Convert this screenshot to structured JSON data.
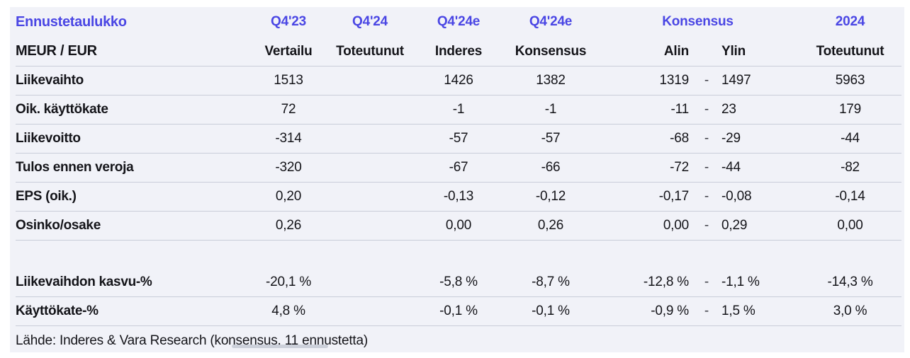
{
  "style": {
    "accent_color": "#4a46e4",
    "table_bg": "#f1f2f8",
    "divider_color": "#c9cdd9",
    "text_color": "#141419"
  },
  "chart_data": {
    "type": "table",
    "title": "Ennustetaulukko",
    "unit_label": "MEUR / EUR",
    "range_separator": "-",
    "column_groups": [
      "Q4'23",
      "Q4'24",
      "Q4'24e",
      "Q4'24e",
      "Konsensus",
      "2024"
    ],
    "columns": [
      "Vertailu",
      "Toteutunut",
      "Inderes",
      "Konsensus",
      "Alin",
      "Ylin",
      "Toteutunut"
    ],
    "rows": [
      {
        "label": "Liikevaihto",
        "cells": [
          "1513",
          "",
          "1426",
          "1382",
          "1319",
          "1497",
          "5963"
        ]
      },
      {
        "label": "Oik. käyttökate",
        "cells": [
          "72",
          "",
          "-1",
          "-1",
          "-11",
          "23",
          "179"
        ]
      },
      {
        "label": "Liikevoitto",
        "cells": [
          "-314",
          "",
          "-57",
          "-57",
          "-68",
          "-29",
          "-44"
        ]
      },
      {
        "label": "Tulos ennen veroja",
        "cells": [
          "-320",
          "",
          "-67",
          "-66",
          "-72",
          "-44",
          "-82"
        ]
      },
      {
        "label": "EPS (oik.)",
        "cells": [
          "0,20",
          "",
          "-0,13",
          "-0,12",
          "-0,17",
          "-0,08",
          "-0,14"
        ]
      },
      {
        "label": "Osinko/osake",
        "cells": [
          "0,26",
          "",
          "0,00",
          "0,26",
          "0,00",
          "0,29",
          "0,00"
        ]
      },
      {
        "label": "Liikevaihdon kasvu-%",
        "cells": [
          "-20,1 %",
          "",
          "-5,8 %",
          "-8,7 %",
          "-12,8 %",
          "-1,1 %",
          "-14,3 %"
        ]
      },
      {
        "label": "Käyttökate-%",
        "cells": [
          "4,8 %",
          "",
          "-0,1 %",
          "-0,1 %",
          "-0,9 %",
          "1,5 %",
          "3,0 %"
        ]
      }
    ],
    "source_note": "Lähde: Inderes & Vara Research  (konsensus, 11 ennustetta)"
  }
}
